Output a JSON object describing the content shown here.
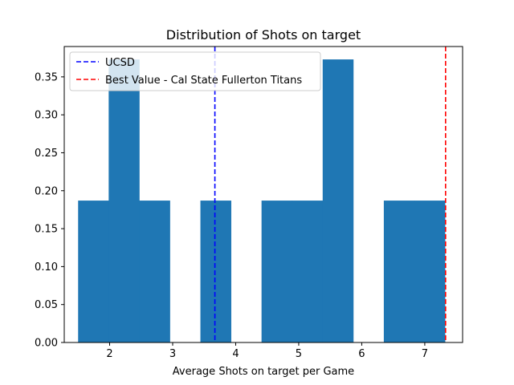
{
  "chart_data": {
    "type": "bar",
    "title": "Distribution of Shots on target",
    "xlabel": "Average Shots on target per Game",
    "ylabel": "",
    "xlim": [
      1.28,
      7.6
    ],
    "ylim": [
      0,
      0.39
    ],
    "xticks": [
      2,
      3,
      4,
      5,
      6,
      7
    ],
    "yticks": [
      0.0,
      0.05,
      0.1,
      0.15,
      0.2,
      0.25,
      0.3,
      0.35
    ],
    "ytick_labels": [
      "0.00",
      "0.05",
      "0.10",
      "0.15",
      "0.20",
      "0.25",
      "0.30",
      "0.35"
    ],
    "bin_edges": [
      1.5,
      1.985,
      2.47,
      2.955,
      3.44,
      3.925,
      4.41,
      4.895,
      5.38,
      5.865,
      6.35,
      6.835,
      7.32
    ],
    "values": [
      0.187,
      0.373,
      0.187,
      0.0,
      0.187,
      0.0,
      0.187,
      0.187,
      0.373,
      0.0,
      0.187,
      0.187
    ],
    "bar_color": "#1f77b4",
    "grid": false,
    "legend_position": "top-left",
    "reference_lines": [
      {
        "name": "UCSD",
        "x": 3.67,
        "color": "#0000ff",
        "style": "dashed"
      },
      {
        "name": "Best Value - Cal State Fullerton Titans",
        "x": 7.33,
        "color": "#ff0000",
        "style": "dashed"
      }
    ]
  }
}
